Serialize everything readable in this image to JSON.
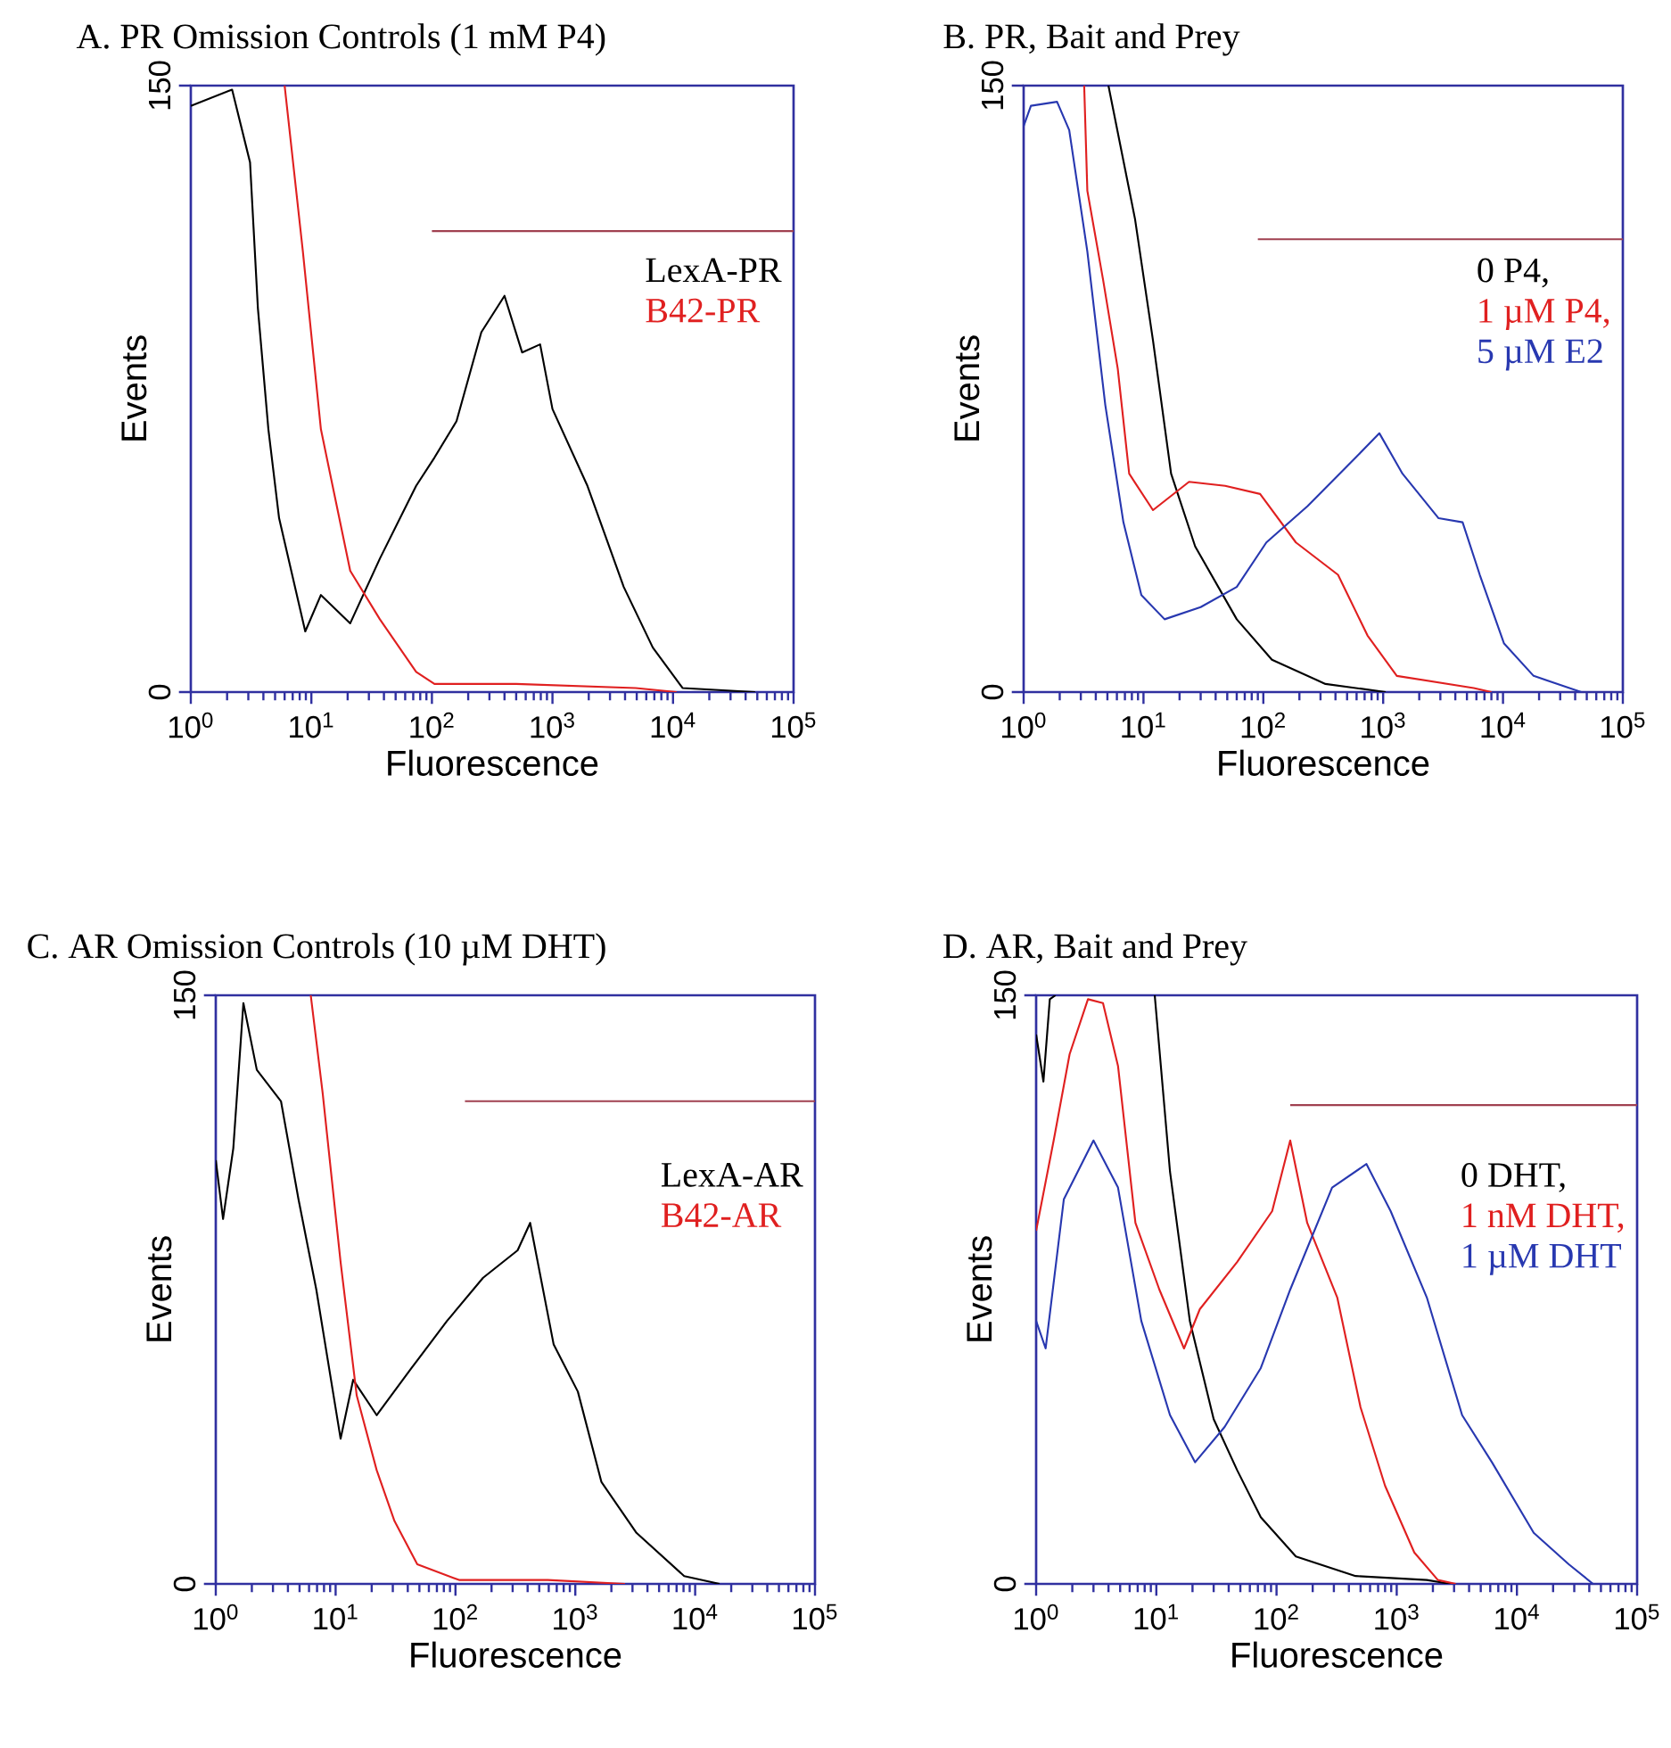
{
  "chart_data": [
    {
      "type": "line",
      "title": "A. PR Omission Controls (1 mM P4)",
      "xlabel": "Fluorescence",
      "ylabel": "Events",
      "log": "x",
      "xlim": [
        1,
        100000
      ],
      "ylim": [
        0,
        150
      ],
      "xticks": [
        {
          "value": 1,
          "label": "10$^{0}$"
        },
        {
          "value": 10,
          "label": "10$^{1}$"
        },
        {
          "value": 100,
          "label": "10$^{2}$"
        },
        {
          "value": 1000,
          "label": "10$^{3}$"
        },
        {
          "value": 10000,
          "label": "10$^{4}$"
        },
        {
          "value": 100000,
          "label": "10$^{5}$"
        }
      ],
      "yticks": [
        0,
        150
      ],
      "legend": "top right",
      "series": [
        {
          "name": "LexA-PR",
          "color": "#000000",
          "x": [
            1,
            2.2,
            3.1,
            3.6,
            4.4,
            5.4,
            8.9,
            12,
            21,
            37,
            74,
            105,
            160,
            257,
            400,
            560,
            790,
            1000,
            1950,
            3900,
            6800,
            12000,
            48000
          ],
          "values": [
            145,
            149,
            131,
            95,
            65,
            43,
            15,
            24,
            17,
            33,
            51,
            58,
            67,
            89,
            98,
            84,
            86,
            70,
            51,
            26,
            11,
            1,
            0
          ]
        },
        {
          "name": "B42-PR",
          "color": "#e02020",
          "x": [
            6,
            8.5,
            12,
            15,
            21,
            37,
            74,
            105,
            500,
            4900,
            10700
          ],
          "values": [
            150,
            109,
            65,
            51,
            30,
            18,
            5,
            2,
            2,
            1,
            0
          ]
        },
        {
          "color": "#a04050",
          "x": [
            100,
            100000
          ],
          "values": [
            114,
            114
          ]
        }
      ]
    },
    {
      "type": "line",
      "title": "B. PR, Bait and Prey",
      "xlabel": "Fluorescence",
      "ylabel": "Events",
      "log": "x",
      "xlim": [
        1,
        100000
      ],
      "ylim": [
        0,
        150
      ],
      "xticks": [
        {
          "value": 1,
          "label": "10$^{0}$"
        },
        {
          "value": 10,
          "label": "10$^{1}$"
        },
        {
          "value": 100,
          "label": "10$^{2}$"
        },
        {
          "value": 1000,
          "label": "10$^{3}$"
        },
        {
          "value": 10000,
          "label": "10$^{4}$"
        },
        {
          "value": 100000,
          "label": "10$^{5}$"
        }
      ],
      "yticks": [
        0,
        150
      ],
      "legend": "top right",
      "series": [
        {
          "name": "0 P4,",
          "color": "#000000",
          "x": [
            5.1,
            8.5,
            12,
            17,
            27,
            60,
            118,
            330,
            1050
          ],
          "values": [
            150,
            117,
            87,
            54,
            36,
            18,
            8,
            2,
            0
          ]
        },
        {
          "name": "1 µM P4,",
          "color": "#e02020",
          "x": [
            3.2,
            3.4,
            4.6,
            6.1,
            7.6,
            12,
            24,
            48,
            94,
            187,
            420,
            740,
            1300,
            5700,
            8000
          ],
          "values": [
            150,
            124,
            102,
            80,
            54,
            45,
            52,
            51,
            49,
            37,
            29,
            14,
            4,
            1,
            0
          ]
        },
        {
          "name": "5 µM E2",
          "color": "#2838b0",
          "x": [
            1,
            1.15,
            1.9,
            2.4,
            3.4,
            4.8,
            6.8,
            9.6,
            15,
            30,
            60,
            106,
            234,
            590,
            930,
            1450,
            2900,
            4600,
            6400,
            10200,
            18000,
            45000
          ],
          "values": [
            140,
            145,
            146,
            139,
            109,
            71,
            42,
            24,
            18,
            21,
            26,
            37,
            46,
            58,
            64,
            54,
            43,
            42,
            29,
            12,
            4,
            0
          ]
        },
        {
          "color": "#a04050",
          "x": [
            90,
            100000
          ],
          "values": [
            112,
            112
          ]
        }
      ]
    },
    {
      "type": "line",
      "title": "C. AR Omission Controls (10 µM DHT)",
      "xlabel": "Fluorescence",
      "ylabel": "Events",
      "log": "x",
      "xlim": [
        1,
        100000
      ],
      "ylim": [
        0,
        150
      ],
      "xticks": [
        {
          "value": 1,
          "label": "10$^{0}$"
        },
        {
          "value": 10,
          "label": "10$^{1}$"
        },
        {
          "value": 100,
          "label": "10$^{2}$"
        },
        {
          "value": 1000,
          "label": "10$^{3}$"
        },
        {
          "value": 10000,
          "label": "10$^{4}$"
        },
        {
          "value": 100000,
          "label": "10$^{5}$"
        }
      ],
      "yticks": [
        0,
        150
      ],
      "legend": "top right",
      "series": [
        {
          "name": "LexA-AR",
          "color": "#000000",
          "x": [
            1,
            1.15,
            1.4,
            1.7,
            2.2,
            3.5,
            4.9,
            6.9,
            11,
            14,
            22,
            43,
            85,
            170,
            330,
            420,
            660,
            1050,
            1650,
            3240,
            8100,
            16000
          ],
          "values": [
            108,
            93,
            111,
            148,
            131,
            123,
            98,
            75,
            37,
            52,
            43,
            55,
            67,
            78,
            85,
            92,
            61,
            49,
            26,
            13,
            2,
            0
          ]
        },
        {
          "name": "B42-AR",
          "color": "#e02020",
          "x": [
            6.2,
            7.8,
            11,
            15,
            22,
            31,
            48,
            107,
            590,
            2600
          ],
          "values": [
            150,
            125,
            82,
            48,
            29,
            16,
            5,
            1,
            1,
            0
          ]
        },
        {
          "color": "#a04050",
          "x": [
            120,
            100000
          ],
          "values": [
            123,
            123
          ]
        }
      ]
    },
    {
      "type": "line",
      "title": "D. AR, Bait and Prey",
      "xlabel": "Fluorescence",
      "ylabel": "Events",
      "log": "x",
      "xlim": [
        1,
        100000
      ],
      "ylim": [
        0,
        150
      ],
      "xticks": [
        {
          "value": 1,
          "label": "10$^{0}$"
        },
        {
          "value": 10,
          "label": "10$^{1}$"
        },
        {
          "value": 100,
          "label": "10$^{2}$"
        },
        {
          "value": 1000,
          "label": "10$^{3}$"
        },
        {
          "value": 10000,
          "label": "10$^{4}$"
        },
        {
          "value": 100000,
          "label": "10$^{5}$"
        }
      ],
      "yticks": [
        0,
        150
      ],
      "legend": "top right",
      "series": [
        {
          "name": "0 DHT,",
          "color": "#000000",
          "x": [
            1,
            1.15,
            1.3,
            1.45,
            5,
            9.7,
            13,
            19,
            30,
            47,
            74,
            145,
            455,
            1780,
            2800
          ],
          "values": [
            140,
            128,
            149,
            150,
            null,
            150,
            105,
            67,
            42,
            29,
            17,
            7,
            2,
            1,
            0
          ]
        },
        {
          "name": "1 nM DHT,",
          "color": "#e02020",
          "x": [
            1,
            1.4,
            1.9,
            2.7,
            3.6,
            4.8,
            6.7,
            10.6,
            17,
            23,
            47,
            92,
            130,
            180,
            320,
            500,
            800,
            1400,
            2200,
            3100
          ],
          "values": [
            90,
            113,
            135,
            149,
            148,
            132,
            92,
            75,
            60,
            70,
            82,
            95,
            113,
            92,
            73,
            45,
            25,
            8,
            1,
            0
          ]
        },
        {
          "name": "1 µM DHT",
          "color": "#2838b0",
          "x": [
            1,
            1.2,
            1.7,
            3,
            4.8,
            7.5,
            13,
            21,
            37,
            74,
            130,
            290,
            560,
            890,
            1780,
            3500,
            6200,
            13800,
            27000,
            43000
          ],
          "values": [
            67,
            60,
            98,
            113,
            101,
            67,
            43,
            31,
            40,
            55,
            75,
            101,
            107,
            95,
            73,
            43,
            31,
            13,
            5,
            0
          ]
        },
        {
          "color": "#a04050",
          "x": [
            130,
            100000
          ],
          "values": [
            122,
            122
          ]
        }
      ]
    }
  ]
}
